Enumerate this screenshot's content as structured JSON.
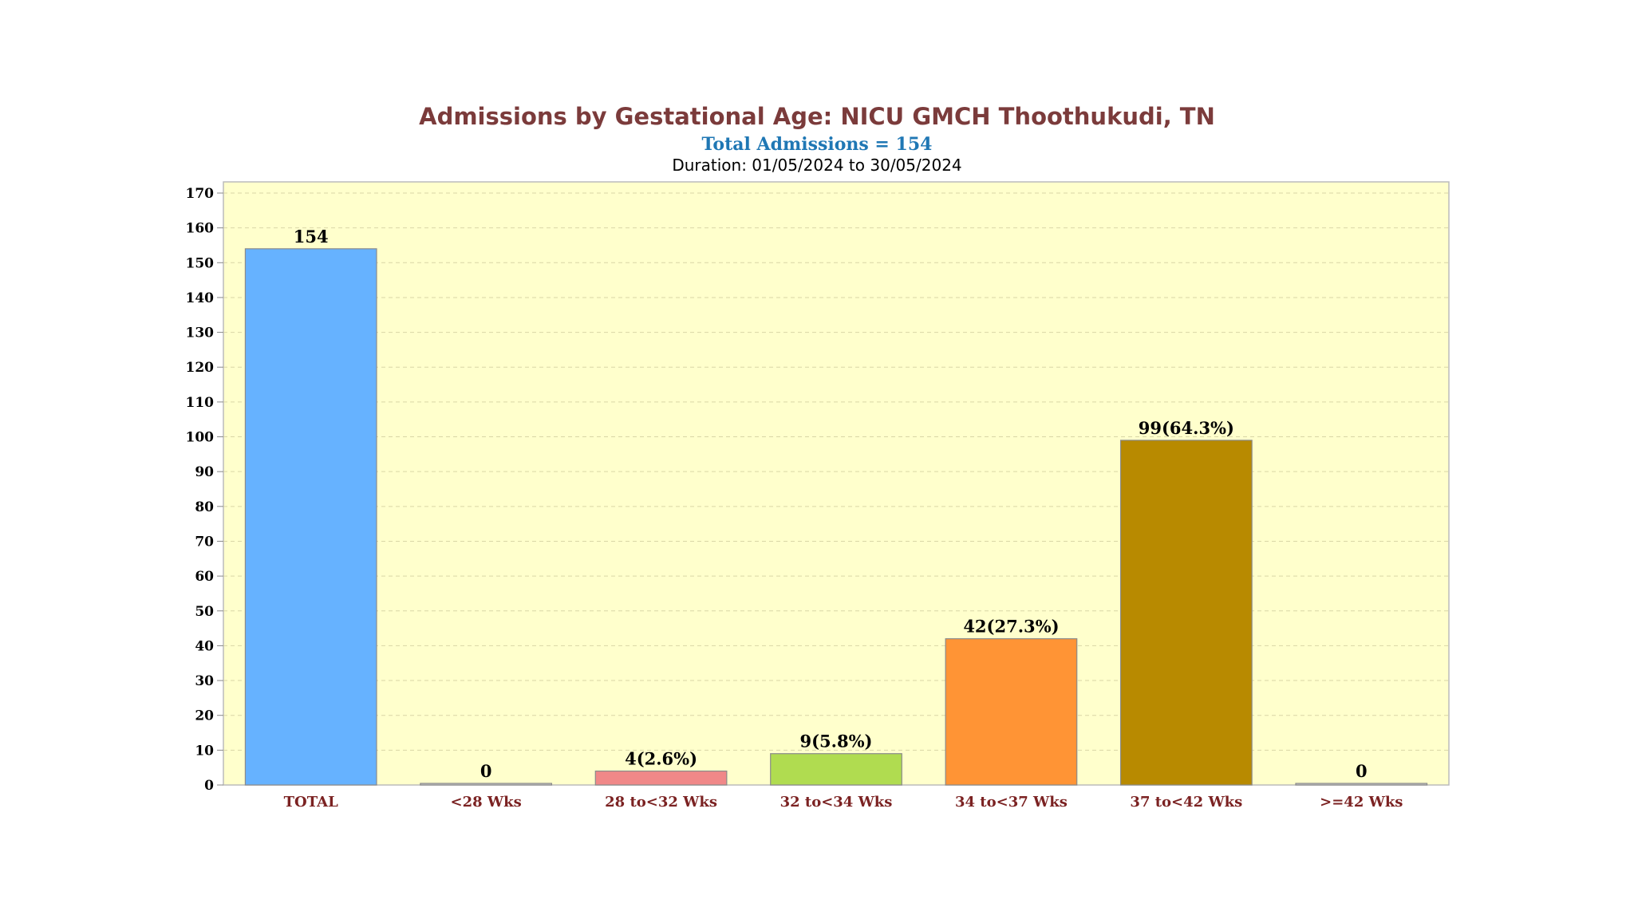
{
  "title": "Admissions by Gestational Age: NICU GMCH Thoothukudi, TN",
  "subtitle": "Total Admissions = 154",
  "duration": "Duration: 01/05/2024 to 30/05/2024",
  "colors": {
    "title": "#7b3b3b",
    "subtitle": "#1f77b4",
    "plot_background": "#ffffcc",
    "x_tick_label": "#7b2222",
    "grid": "#d9d6a6"
  },
  "chart_data": {
    "type": "bar",
    "categories": [
      "TOTAL",
      "<28 Wks",
      "28 to<32 Wks",
      "32 to<34 Wks",
      "34 to<37 Wks",
      "37 to<42 Wks",
      ">=42 Wks"
    ],
    "values": [
      154,
      0,
      4,
      9,
      42,
      99,
      0
    ],
    "data_labels": [
      "154",
      "0",
      "4(2.6%)",
      "9(5.8%)",
      "42(27.3%)",
      "99(64.3%)",
      "0"
    ],
    "bar_colors": [
      "#66b2ff",
      "#cccccc",
      "#f08888",
      "#b0dc50",
      "#ff9435",
      "#b88a00",
      "#cccccc"
    ],
    "ylim": [
      0,
      170
    ],
    "yticks": [
      0,
      10,
      20,
      30,
      40,
      50,
      60,
      70,
      80,
      90,
      100,
      110,
      120,
      130,
      140,
      150,
      160,
      170
    ],
    "grid": true,
    "legend": "none"
  }
}
